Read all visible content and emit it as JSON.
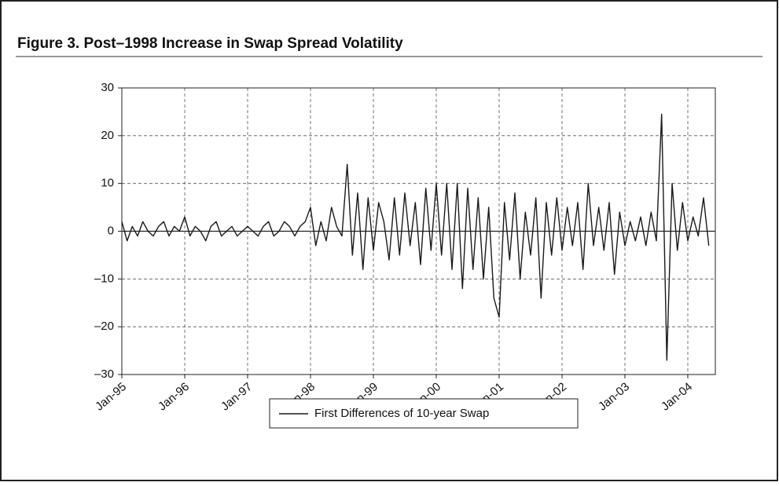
{
  "chart_data": {
    "type": "line",
    "title": "Figure 3.  Post–1998 Increase in Swap Spread Volatility",
    "categories": [
      "Jan-95",
      null,
      null,
      null,
      null,
      null,
      null,
      null,
      null,
      null,
      null,
      null,
      "Jan-96",
      null,
      null,
      null,
      null,
      null,
      null,
      null,
      null,
      null,
      null,
      null,
      "Jan-97",
      null,
      null,
      null,
      null,
      null,
      null,
      null,
      null,
      null,
      null,
      null,
      "Jan-98",
      null,
      null,
      null,
      null,
      null,
      null,
      null,
      null,
      null,
      null,
      null,
      "Jan-99",
      null,
      null,
      null,
      null,
      null,
      null,
      null,
      null,
      null,
      null,
      null,
      "Jan-00",
      null,
      null,
      null,
      null,
      null,
      null,
      null,
      null,
      null,
      null,
      null,
      "Jan-01",
      null,
      null,
      null,
      null,
      null,
      null,
      null,
      null,
      null,
      null,
      null,
      "Jan-02",
      null,
      null,
      null,
      null,
      null,
      null,
      null,
      null,
      null,
      null,
      null,
      "Jan-03",
      null,
      null,
      null,
      null,
      null,
      null,
      null,
      null,
      null,
      null,
      null,
      "Jan-04",
      null,
      null,
      null,
      null
    ],
    "series": [
      {
        "name": "First Differences of 10-year Swap",
        "color": "#1a1a1a",
        "values": [
          2,
          -2,
          1,
          -1,
          2,
          0,
          -1,
          1,
          2,
          -1,
          1,
          0,
          3,
          -1,
          1,
          0,
          -2,
          1,
          2,
          -1,
          0,
          1,
          -1,
          0,
          1,
          0,
          -1,
          1,
          2,
          -1,
          0,
          2,
          1,
          -1,
          1,
          2,
          5,
          -3,
          2,
          -2,
          5,
          1,
          -1,
          14,
          -5,
          8,
          -8,
          7,
          -4,
          6,
          2,
          -6,
          7,
          -5,
          8,
          -3,
          6,
          -7,
          9,
          -4,
          10,
          -5,
          10,
          -8,
          10,
          -12,
          9,
          -8,
          7,
          -10,
          5,
          -14,
          -18,
          6,
          -6,
          8,
          -10,
          4,
          -5,
          7,
          -14,
          6,
          -5,
          7,
          -4,
          5,
          -3,
          6,
          -8,
          10,
          -3,
          5,
          -4,
          6,
          -9,
          4,
          -3,
          2,
          -2,
          3,
          -3,
          4,
          -2,
          24.5,
          -27,
          10,
          -4,
          6,
          -2,
          3,
          -1,
          7,
          -3
        ]
      }
    ],
    "ylim": [
      -30,
      30
    ],
    "yticks": [
      {
        "value": -30,
        "label": "–30"
      },
      {
        "value": -20,
        "label": "–20"
      },
      {
        "value": -10,
        "label": "–10"
      },
      0,
      10,
      20,
      30
    ],
    "grid": true,
    "legend": "bottom"
  }
}
